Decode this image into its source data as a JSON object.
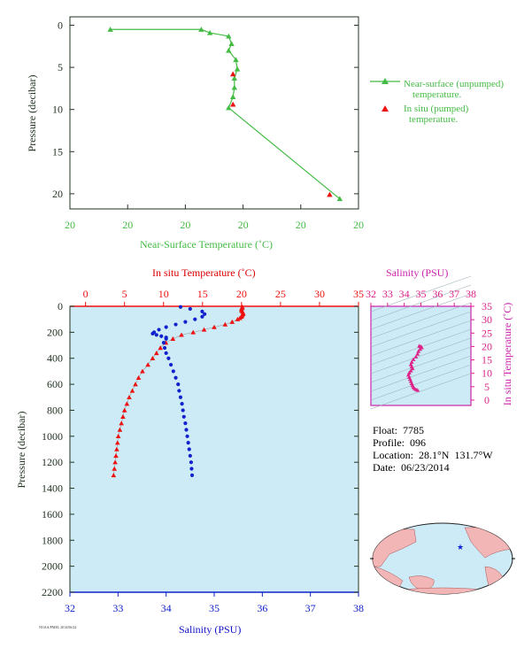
{
  "colors": {
    "near_surface": "#44bb44",
    "in_situ_temp": "#ee1111",
    "salinity": "#1122cc",
    "ts_points": "#dd2288",
    "axis_dark": "#223322",
    "plot_bg": "#cdebf7",
    "land": "#f3b6b6",
    "ocean": "#cdebf7"
  },
  "legend": {
    "near_surface_line1": "Near-surface (unpumped)",
    "near_surface_line2": "temperature.",
    "in_situ_line1": "In situ (pumped)",
    "in_situ_line2": "temperature."
  },
  "info": {
    "float_label": "Float:",
    "float_value": "7785",
    "profile_label": "Profile:",
    "profile_value": "096",
    "location_label": "Location:",
    "location_value": "28.1°N  131.7°W",
    "date_label": "Date:",
    "date_value": "06/23/2014"
  },
  "footer_code": "NOAA/PMEL 2014/06/24",
  "map_marker_icon": "star-icon",
  "chart_data": [
    {
      "id": "near_surface_profile",
      "type": "line",
      "xlabel": "Near-Surface Temperature (˚C)",
      "ylabel": "Pressure (decibar)",
      "x_tick_labels": [
        "20",
        "20",
        "20",
        "20",
        "20",
        "20"
      ],
      "y_ticks": [
        0,
        5,
        10,
        15,
        20
      ],
      "ylim": [
        21.8,
        -1.0
      ],
      "grid": false,
      "legend_position": "right",
      "series": [
        {
          "name": "Near-surface (unpumped) temperature.",
          "marker": "triangle",
          "points": [
            {
              "p": 0.5,
              "t": 20.28
            },
            {
              "p": 0.5,
              "t": 20.91
            },
            {
              "p": 0.9,
              "t": 20.97
            },
            {
              "p": 1.3,
              "t": 21.1
            },
            {
              "p": 2.2,
              "t": 21.12
            },
            {
              "p": 3.0,
              "t": 21.1
            },
            {
              "p": 4.1,
              "t": 21.15
            },
            {
              "p": 5.2,
              "t": 21.16
            },
            {
              "p": 6.3,
              "t": 21.14
            },
            {
              "p": 7.4,
              "t": 21.14
            },
            {
              "p": 8.5,
              "t": 21.13
            },
            {
              "p": 9.8,
              "t": 21.1
            },
            {
              "p": 20.6,
              "t": 21.87
            }
          ]
        },
        {
          "name": "In situ (pumped) temperature.",
          "marker": "triangle",
          "points": [
            {
              "p": 5.8,
              "t": 21.13
            },
            {
              "p": 9.4,
              "t": 21.13
            },
            {
              "p": 20.1,
              "t": 21.8
            }
          ]
        }
      ]
    },
    {
      "id": "main_profile",
      "type": "scatter",
      "ylabel": "Pressure (decibar)",
      "temp_axis": {
        "label": "In situ Temperature (˚C)",
        "range": [
          -2,
          35
        ],
        "ticks": [
          0,
          5,
          10,
          15,
          20,
          25,
          30,
          35
        ]
      },
      "sal_axis": {
        "label": "Salinity (PSU)",
        "range": [
          32,
          38
        ],
        "ticks": [
          32,
          33,
          34,
          35,
          36,
          37,
          38
        ]
      },
      "ylim": [
        2200,
        0
      ],
      "y_ticks": [
        0,
        200,
        400,
        600,
        800,
        1000,
        1200,
        1400,
        1600,
        1800,
        2000,
        2200
      ],
      "temperature": {
        "name": "In situ Temperature (˚C)",
        "pressure": [
          5,
          10,
          20,
          30,
          40,
          50,
          60,
          70,
          80,
          90,
          100,
          120,
          140,
          160,
          180,
          200,
          220,
          250,
          280,
          320,
          360,
          400,
          450,
          500,
          550,
          600,
          650,
          700,
          750,
          800,
          850,
          900,
          950,
          1000,
          1050,
          1100,
          1150,
          1200,
          1250,
          1300
        ],
        "values": [
          20.1,
          20.1,
          20.0,
          20.0,
          20.1,
          20.2,
          20.2,
          20.1,
          20.0,
          19.8,
          19.5,
          18.8,
          17.9,
          16.5,
          15.2,
          13.8,
          12.3,
          11.2,
          10.3,
          9.6,
          9.1,
          8.6,
          8.0,
          7.3,
          6.8,
          6.4,
          6.0,
          5.6,
          5.3,
          5.0,
          4.8,
          4.6,
          4.4,
          4.2,
          4.1,
          4.0,
          3.9,
          3.8,
          3.7,
          3.6
        ]
      },
      "salinity": {
        "name": "Salinity (PSU)",
        "pressure": [
          5,
          20,
          40,
          60,
          80,
          100,
          120,
          140,
          160,
          180,
          200,
          210,
          220,
          230,
          240,
          250,
          280,
          320,
          360,
          400,
          450,
          500,
          550,
          600,
          650,
          700,
          750,
          800,
          850,
          900,
          950,
          1000,
          1050,
          1100,
          1150,
          1200,
          1250,
          1300
        ],
        "values": [
          34.3,
          34.5,
          34.75,
          34.8,
          34.75,
          34.6,
          34.4,
          34.2,
          34.0,
          33.85,
          33.75,
          33.72,
          33.8,
          33.9,
          34.0,
          34.0,
          33.95,
          33.97,
          34.0,
          34.05,
          34.1,
          34.15,
          34.2,
          34.25,
          34.27,
          34.3,
          34.33,
          34.35,
          34.37,
          34.4,
          34.42,
          34.44,
          34.46,
          34.48,
          34.5,
          34.52,
          34.53,
          34.54
        ]
      }
    },
    {
      "id": "ts_diagram",
      "type": "scatter",
      "xlabel": "Salinity (PSU)",
      "ylabel": "In situ Temperature (˚C)",
      "xlim": [
        32,
        38
      ],
      "ylim": [
        -2,
        35
      ],
      "x_ticks": [
        32,
        33,
        34,
        35,
        36,
        37,
        38
      ],
      "y_ticks": [
        0,
        5,
        10,
        15,
        20,
        25,
        30,
        35
      ],
      "points": [
        {
          "s": 34.9,
          "t": 20.2
        },
        {
          "s": 35.0,
          "t": 20.0
        },
        {
          "s": 35.05,
          "t": 19.6
        },
        {
          "s": 34.95,
          "t": 19.0
        },
        {
          "s": 34.85,
          "t": 18.2
        },
        {
          "s": 34.8,
          "t": 17.2
        },
        {
          "s": 34.7,
          "t": 16.2
        },
        {
          "s": 34.55,
          "t": 15.2
        },
        {
          "s": 34.45,
          "t": 14.2
        },
        {
          "s": 34.4,
          "t": 13.3
        },
        {
          "s": 34.45,
          "t": 12.5
        },
        {
          "s": 34.5,
          "t": 11.8
        },
        {
          "s": 34.4,
          "t": 11.0
        },
        {
          "s": 34.3,
          "t": 10.2
        },
        {
          "s": 34.25,
          "t": 9.4
        },
        {
          "s": 34.3,
          "t": 8.6
        },
        {
          "s": 34.35,
          "t": 7.8
        },
        {
          "s": 34.4,
          "t": 7.0
        },
        {
          "s": 34.45,
          "t": 6.2
        },
        {
          "s": 34.5,
          "t": 5.5
        },
        {
          "s": 34.55,
          "t": 4.9
        },
        {
          "s": 34.6,
          "t": 4.4
        },
        {
          "s": 34.7,
          "t": 4.0
        },
        {
          "s": 34.8,
          "t": 3.7
        }
      ]
    }
  ]
}
